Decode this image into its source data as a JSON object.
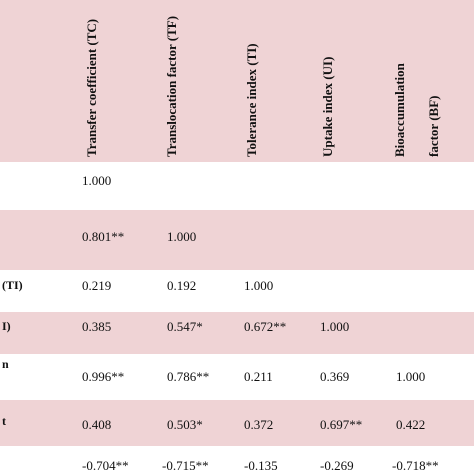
{
  "header": {
    "col1": "Transfer coefficient (TC)",
    "col2": "Translocation factor (TF)",
    "col3": "Tolerance index (TI)",
    "col4": "Uptake index (UI)",
    "col5_line1": "Bioaccumulation",
    "col5_line2": "factor (BF)"
  },
  "row_labels": {
    "r3": "(TI)",
    "r4": "I)",
    "r5": "n",
    "r6": "t"
  },
  "rows": [
    [
      "1.000",
      "",
      "",
      "",
      ""
    ],
    [
      "0.801**",
      "1.000",
      "",
      "",
      ""
    ],
    [
      "0.219",
      "0.192",
      "1.000",
      "",
      ""
    ],
    [
      "0.385",
      "0.547*",
      "0.672**",
      "1.000",
      ""
    ],
    [
      "0.996**",
      "0.786**",
      "0.211",
      "0.369",
      "1.000"
    ],
    [
      "0.408",
      "0.503*",
      "0.372",
      "0.697**",
      "0.422"
    ],
    [
      "-0.704**",
      "-0.715**",
      "-0.135",
      "-0.269",
      "-0.718**"
    ]
  ]
}
